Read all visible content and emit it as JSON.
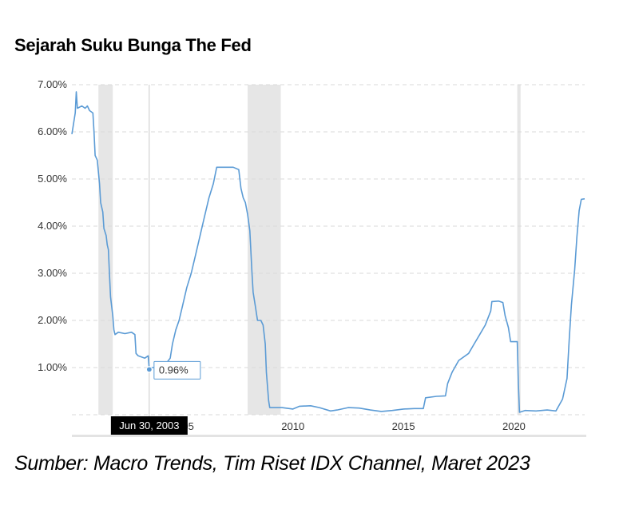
{
  "title": "Sejarah Suku Bunga The Fed",
  "source": "Sumber: Macro Trends, Tim Riset IDX Channel, Maret 2023",
  "colors": {
    "line": "#5b9bd5",
    "recession": "#e6e6e6",
    "grid": "#d9d9d9",
    "crosshair": "#c8c8c8",
    "date_badge": "#000000"
  },
  "chart_data": {
    "type": "line",
    "title": "Sejarah Suku Bunga The Fed",
    "xlabel": "",
    "ylabel": "",
    "ylim": [
      0,
      7
    ],
    "xlim": [
      2000.0,
      2023.2
    ],
    "grid": true,
    "y_ticks": [
      "1.00%",
      "2.00%",
      "3.00%",
      "4.00%",
      "5.00%",
      "6.00%",
      "7.00%"
    ],
    "x_ticks": [
      "2005",
      "2010",
      "2015",
      "2020"
    ],
    "recessions": [
      [
        2001.2,
        2001.85
      ],
      [
        2007.95,
        2009.45
      ],
      [
        2020.15,
        2020.3
      ]
    ],
    "series": [
      {
        "name": "",
        "points": [
          [
            2000.0,
            5.95
          ],
          [
            2000.05,
            6.1
          ],
          [
            2000.15,
            6.4
          ],
          [
            2000.2,
            6.85
          ],
          [
            2000.25,
            6.5
          ],
          [
            2000.45,
            6.55
          ],
          [
            2000.6,
            6.5
          ],
          [
            2000.7,
            6.55
          ],
          [
            2000.8,
            6.45
          ],
          [
            2000.95,
            6.4
          ],
          [
            2001.0,
            6.0
          ],
          [
            2001.05,
            5.5
          ],
          [
            2001.15,
            5.4
          ],
          [
            2001.25,
            4.9
          ],
          [
            2001.3,
            4.5
          ],
          [
            2001.4,
            4.3
          ],
          [
            2001.45,
            3.95
          ],
          [
            2001.55,
            3.8
          ],
          [
            2001.6,
            3.6
          ],
          [
            2001.65,
            3.5
          ],
          [
            2001.7,
            3.0
          ],
          [
            2001.75,
            2.5
          ],
          [
            2001.8,
            2.3
          ],
          [
            2001.85,
            2.1
          ],
          [
            2001.9,
            1.8
          ],
          [
            2001.95,
            1.7
          ],
          [
            2002.1,
            1.75
          ],
          [
            2002.4,
            1.72
          ],
          [
            2002.7,
            1.75
          ],
          [
            2002.85,
            1.7
          ],
          [
            2002.9,
            1.3
          ],
          [
            2003.0,
            1.25
          ],
          [
            2003.3,
            1.2
          ],
          [
            2003.45,
            1.25
          ],
          [
            2003.5,
            0.96
          ],
          [
            2003.6,
            1.0
          ],
          [
            2003.75,
            1.0
          ],
          [
            2004.0,
            1.0
          ],
          [
            2004.2,
            1.05
          ],
          [
            2004.45,
            1.2
          ],
          [
            2004.55,
            1.5
          ],
          [
            2004.7,
            1.8
          ],
          [
            2004.85,
            2.0
          ],
          [
            2005.0,
            2.3
          ],
          [
            2005.2,
            2.7
          ],
          [
            2005.4,
            3.0
          ],
          [
            2005.6,
            3.4
          ],
          [
            2005.8,
            3.8
          ],
          [
            2006.0,
            4.2
          ],
          [
            2006.2,
            4.6
          ],
          [
            2006.4,
            4.9
          ],
          [
            2006.55,
            5.25
          ],
          [
            2006.8,
            5.25
          ],
          [
            2007.0,
            5.25
          ],
          [
            2007.3,
            5.25
          ],
          [
            2007.55,
            5.2
          ],
          [
            2007.65,
            4.8
          ],
          [
            2007.75,
            4.6
          ],
          [
            2007.85,
            4.5
          ],
          [
            2007.95,
            4.25
          ],
          [
            2008.05,
            3.9
          ],
          [
            2008.15,
            3.0
          ],
          [
            2008.2,
            2.6
          ],
          [
            2008.3,
            2.3
          ],
          [
            2008.4,
            2.0
          ],
          [
            2008.55,
            2.0
          ],
          [
            2008.65,
            1.9
          ],
          [
            2008.75,
            1.5
          ],
          [
            2008.8,
            0.9
          ],
          [
            2008.85,
            0.6
          ],
          [
            2008.9,
            0.3
          ],
          [
            2008.95,
            0.15
          ],
          [
            2009.1,
            0.15
          ],
          [
            2009.5,
            0.15
          ],
          [
            2010.0,
            0.12
          ],
          [
            2010.3,
            0.18
          ],
          [
            2010.8,
            0.19
          ],
          [
            2011.2,
            0.15
          ],
          [
            2011.7,
            0.08
          ],
          [
            2012.0,
            0.1
          ],
          [
            2012.5,
            0.15
          ],
          [
            2013.0,
            0.14
          ],
          [
            2013.5,
            0.1
          ],
          [
            2014.0,
            0.07
          ],
          [
            2014.5,
            0.09
          ],
          [
            2015.0,
            0.12
          ],
          [
            2015.5,
            0.13
          ],
          [
            2015.9,
            0.13
          ],
          [
            2016.0,
            0.36
          ],
          [
            2016.5,
            0.39
          ],
          [
            2016.9,
            0.4
          ],
          [
            2017.0,
            0.66
          ],
          [
            2017.2,
            0.9
          ],
          [
            2017.5,
            1.15
          ],
          [
            2017.95,
            1.3
          ],
          [
            2018.2,
            1.5
          ],
          [
            2018.45,
            1.7
          ],
          [
            2018.7,
            1.9
          ],
          [
            2018.95,
            2.2
          ],
          [
            2019.0,
            2.4
          ],
          [
            2019.3,
            2.41
          ],
          [
            2019.5,
            2.38
          ],
          [
            2019.6,
            2.1
          ],
          [
            2019.75,
            1.85
          ],
          [
            2019.85,
            1.55
          ],
          [
            2020.0,
            1.55
          ],
          [
            2020.15,
            1.55
          ],
          [
            2020.2,
            0.65
          ],
          [
            2020.25,
            0.05
          ],
          [
            2020.5,
            0.09
          ],
          [
            2021.0,
            0.08
          ],
          [
            2021.5,
            0.1
          ],
          [
            2021.9,
            0.08
          ],
          [
            2022.2,
            0.33
          ],
          [
            2022.4,
            0.77
          ],
          [
            2022.5,
            1.58
          ],
          [
            2022.6,
            2.33
          ],
          [
            2022.75,
            3.08
          ],
          [
            2022.85,
            3.78
          ],
          [
            2022.95,
            4.33
          ],
          [
            2023.05,
            4.57
          ],
          [
            2023.2,
            4.58
          ]
        ]
      }
    ],
    "highlight": {
      "date": "Jun 30, 2003",
      "x": 2003.5,
      "value": 0.96,
      "label": "0.96%"
    }
  }
}
